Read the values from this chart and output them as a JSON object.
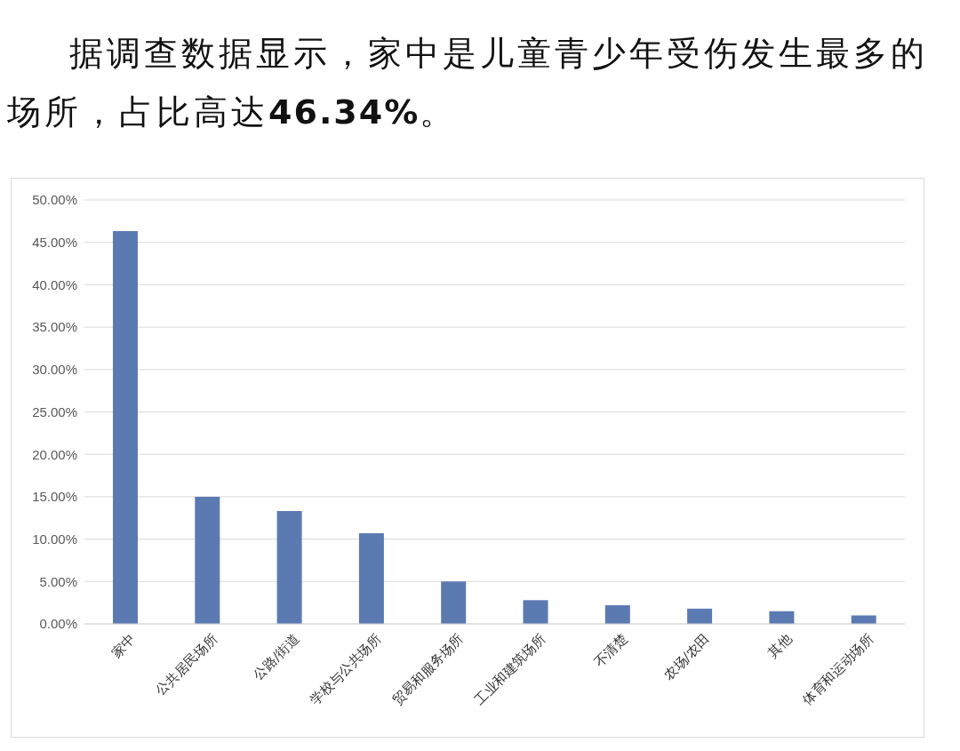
{
  "chart_data": {
    "type": "bar",
    "title": "据调查数据显示，家中是儿童青少年受伤发生最多的场所，占比高达46.34%。",
    "categories": [
      "家中",
      "公共居民场所",
      "公路/街道",
      "学校与公共场所",
      "贸易和服务场所",
      "工业和建筑场所",
      "不清楚",
      "农场/农田",
      "其他",
      "体育和运动场所"
    ],
    "values": [
      46.34,
      15.0,
      13.3,
      10.7,
      5.0,
      2.8,
      2.2,
      1.8,
      1.5,
      1.0
    ],
    "color": "#5b7ab2",
    "ylim": [
      0,
      50
    ],
    "yticks": [
      {
        "value": 0,
        "label": "0.00%"
      },
      {
        "value": 5,
        "label": "5.00%"
      },
      {
        "value": 10,
        "label": "10.00%"
      },
      {
        "value": 15,
        "label": "15.00%"
      },
      {
        "value": 20,
        "label": "20.00%"
      },
      {
        "value": 25,
        "label": "25.00%"
      },
      {
        "value": 30,
        "label": "30.00%"
      },
      {
        "value": 35,
        "label": "35.00%"
      },
      {
        "value": 40,
        "label": "40.00%"
      },
      {
        "value": 45,
        "label": "45.00%"
      },
      {
        "value": 50,
        "label": "50.00%"
      }
    ],
    "grid": "y"
  }
}
